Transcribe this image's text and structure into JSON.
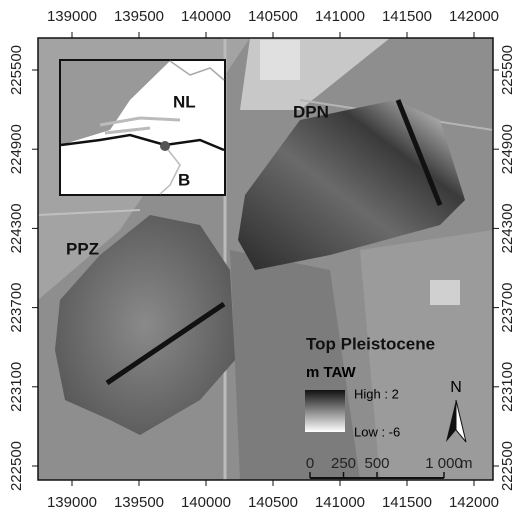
{
  "map": {
    "x_axis": {
      "ticks": [
        139000,
        139500,
        140000,
        140500,
        141000,
        141500,
        142000
      ]
    },
    "y_axis": {
      "ticks": [
        225500,
        224900,
        224300,
        223700,
        223100,
        222500
      ]
    },
    "labels": {
      "nl": "NL",
      "b": "B",
      "dpn": "DPN",
      "ppz": "PPZ"
    },
    "legend": {
      "title": "Top Pleistocene",
      "unit": "m TAW",
      "high": "High : 2",
      "low": "Low : -6"
    },
    "scale_bar": {
      "ticks": [
        0,
        250,
        500,
        {
          "value": 1000,
          "label": "1 000"
        }
      ],
      "unit": "m"
    },
    "north": "N"
  }
}
